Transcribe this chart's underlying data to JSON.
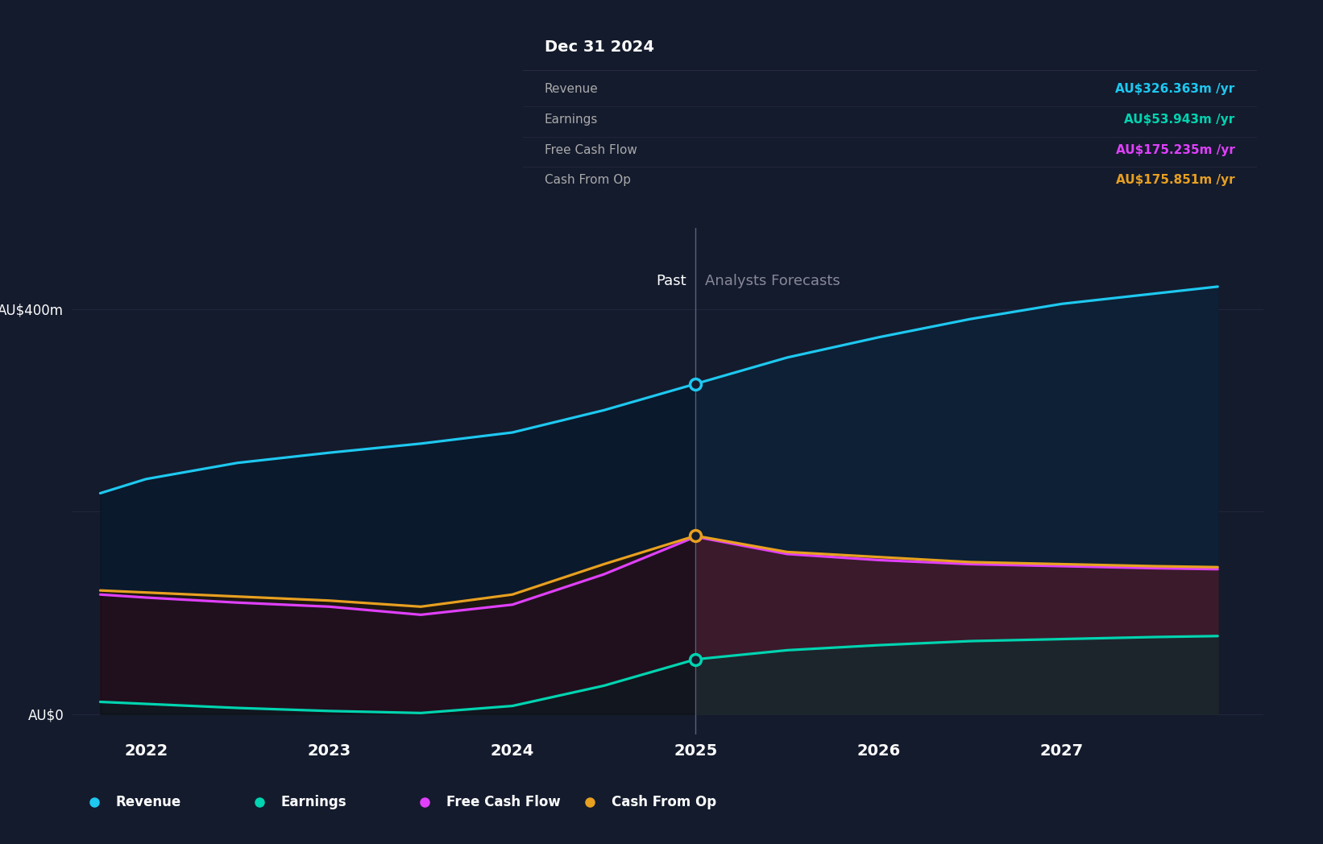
{
  "bg_color": "#141b2d",
  "plot_bg_color": "#141b2d",
  "years": [
    2021.75,
    2022.0,
    2022.5,
    2023.0,
    2023.5,
    2024.0,
    2024.5,
    2025.0,
    2025.5,
    2026.0,
    2026.5,
    2027.0,
    2027.5,
    2027.85
  ],
  "revenue": [
    218,
    232,
    248,
    258,
    267,
    278,
    300,
    326,
    352,
    372,
    390,
    405,
    415,
    422
  ],
  "earnings": [
    12,
    10,
    6,
    3,
    1,
    8,
    28,
    54,
    63,
    68,
    72,
    74,
    76,
    77
  ],
  "free_cashflow": [
    118,
    115,
    110,
    106,
    98,
    108,
    138,
    175,
    158,
    152,
    148,
    146,
    144,
    143
  ],
  "cash_from_op": [
    122,
    120,
    116,
    112,
    106,
    118,
    148,
    176,
    160,
    155,
    150,
    148,
    146,
    145
  ],
  "divider_x": 2025.0,
  "revenue_color": "#1ec8f0",
  "earnings_color": "#00d4b0",
  "fcf_color": "#e040fb",
  "cfop_color": "#e8a020",
  "tooltip_bg": "#080c14",
  "tooltip_title": "Dec 31 2024",
  "tooltip_items": [
    {
      "label": "Revenue",
      "value": "AU$326.363m /yr",
      "color": "#1ec8f0"
    },
    {
      "label": "Earnings",
      "value": "AU$53.943m /yr",
      "color": "#00d4b0"
    },
    {
      "label": "Free Cash Flow",
      "value": "AU$175.235m /yr",
      "color": "#e040fb"
    },
    {
      "label": "Cash From Op",
      "value": "AU$175.851m /yr",
      "color": "#e8a020"
    }
  ],
  "ylim": [
    -20,
    480
  ],
  "xlim": [
    2021.6,
    2028.1
  ],
  "x_ticks": [
    2022,
    2023,
    2024,
    2025,
    2026,
    2027
  ],
  "x_tick_labels": [
    "2022",
    "2023",
    "2024",
    "2025",
    "2026",
    "2027"
  ],
  "past_label": "Past",
  "forecast_label": "Analysts Forecasts",
  "legend_items": [
    {
      "label": "Revenue",
      "color": "#1ec8f0"
    },
    {
      "label": "Earnings",
      "color": "#00d4b0"
    },
    {
      "label": "Free Cash Flow",
      "color": "#e040fb"
    },
    {
      "label": "Cash From Op",
      "color": "#e8a020"
    }
  ]
}
